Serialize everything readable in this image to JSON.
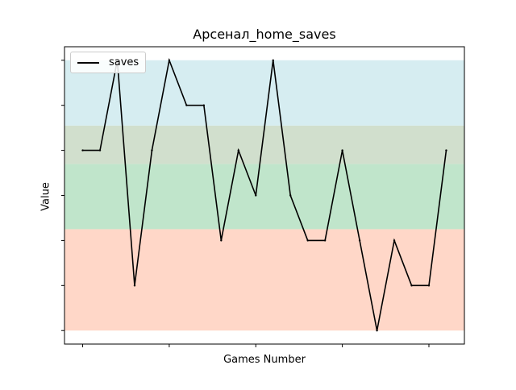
{
  "chart_data": {
    "type": "line",
    "title": "Арсенал_home_saves",
    "xlabel": "Games Number",
    "ylabel": "Value",
    "x": [
      0,
      1,
      2,
      3,
      4,
      5,
      6,
      7,
      8,
      9,
      10,
      11,
      12,
      13,
      14,
      15,
      16,
      17,
      18,
      19,
      20,
      21
    ],
    "series": [
      {
        "name": "saves",
        "color": "#000000",
        "values": [
          4,
          4,
          6,
          1,
          4,
          6,
          5,
          5,
          2,
          4,
          3,
          6,
          3,
          2,
          2,
          4,
          2,
          0,
          2,
          1,
          1,
          4
        ]
      }
    ],
    "ylim": [
      -0.3,
      6.3
    ],
    "xlim": [
      -1.05,
      22.05
    ],
    "bands": [
      {
        "from": 0,
        "to": 2.25,
        "color": "#ffd7c8"
      },
      {
        "from": 2.25,
        "to": 3.7,
        "color": "#c0e5cb"
      },
      {
        "from": 3.7,
        "to": 4.55,
        "color": "#d1dfcd"
      },
      {
        "from": 4.55,
        "to": 6,
        "color": "#d6edf1"
      }
    ],
    "ytick_values": [
      0,
      1,
      2,
      3,
      4,
      5,
      6
    ],
    "xtick_values": [
      0,
      5,
      10,
      15,
      20
    ],
    "grid": false,
    "legend_position": "top-left"
  }
}
